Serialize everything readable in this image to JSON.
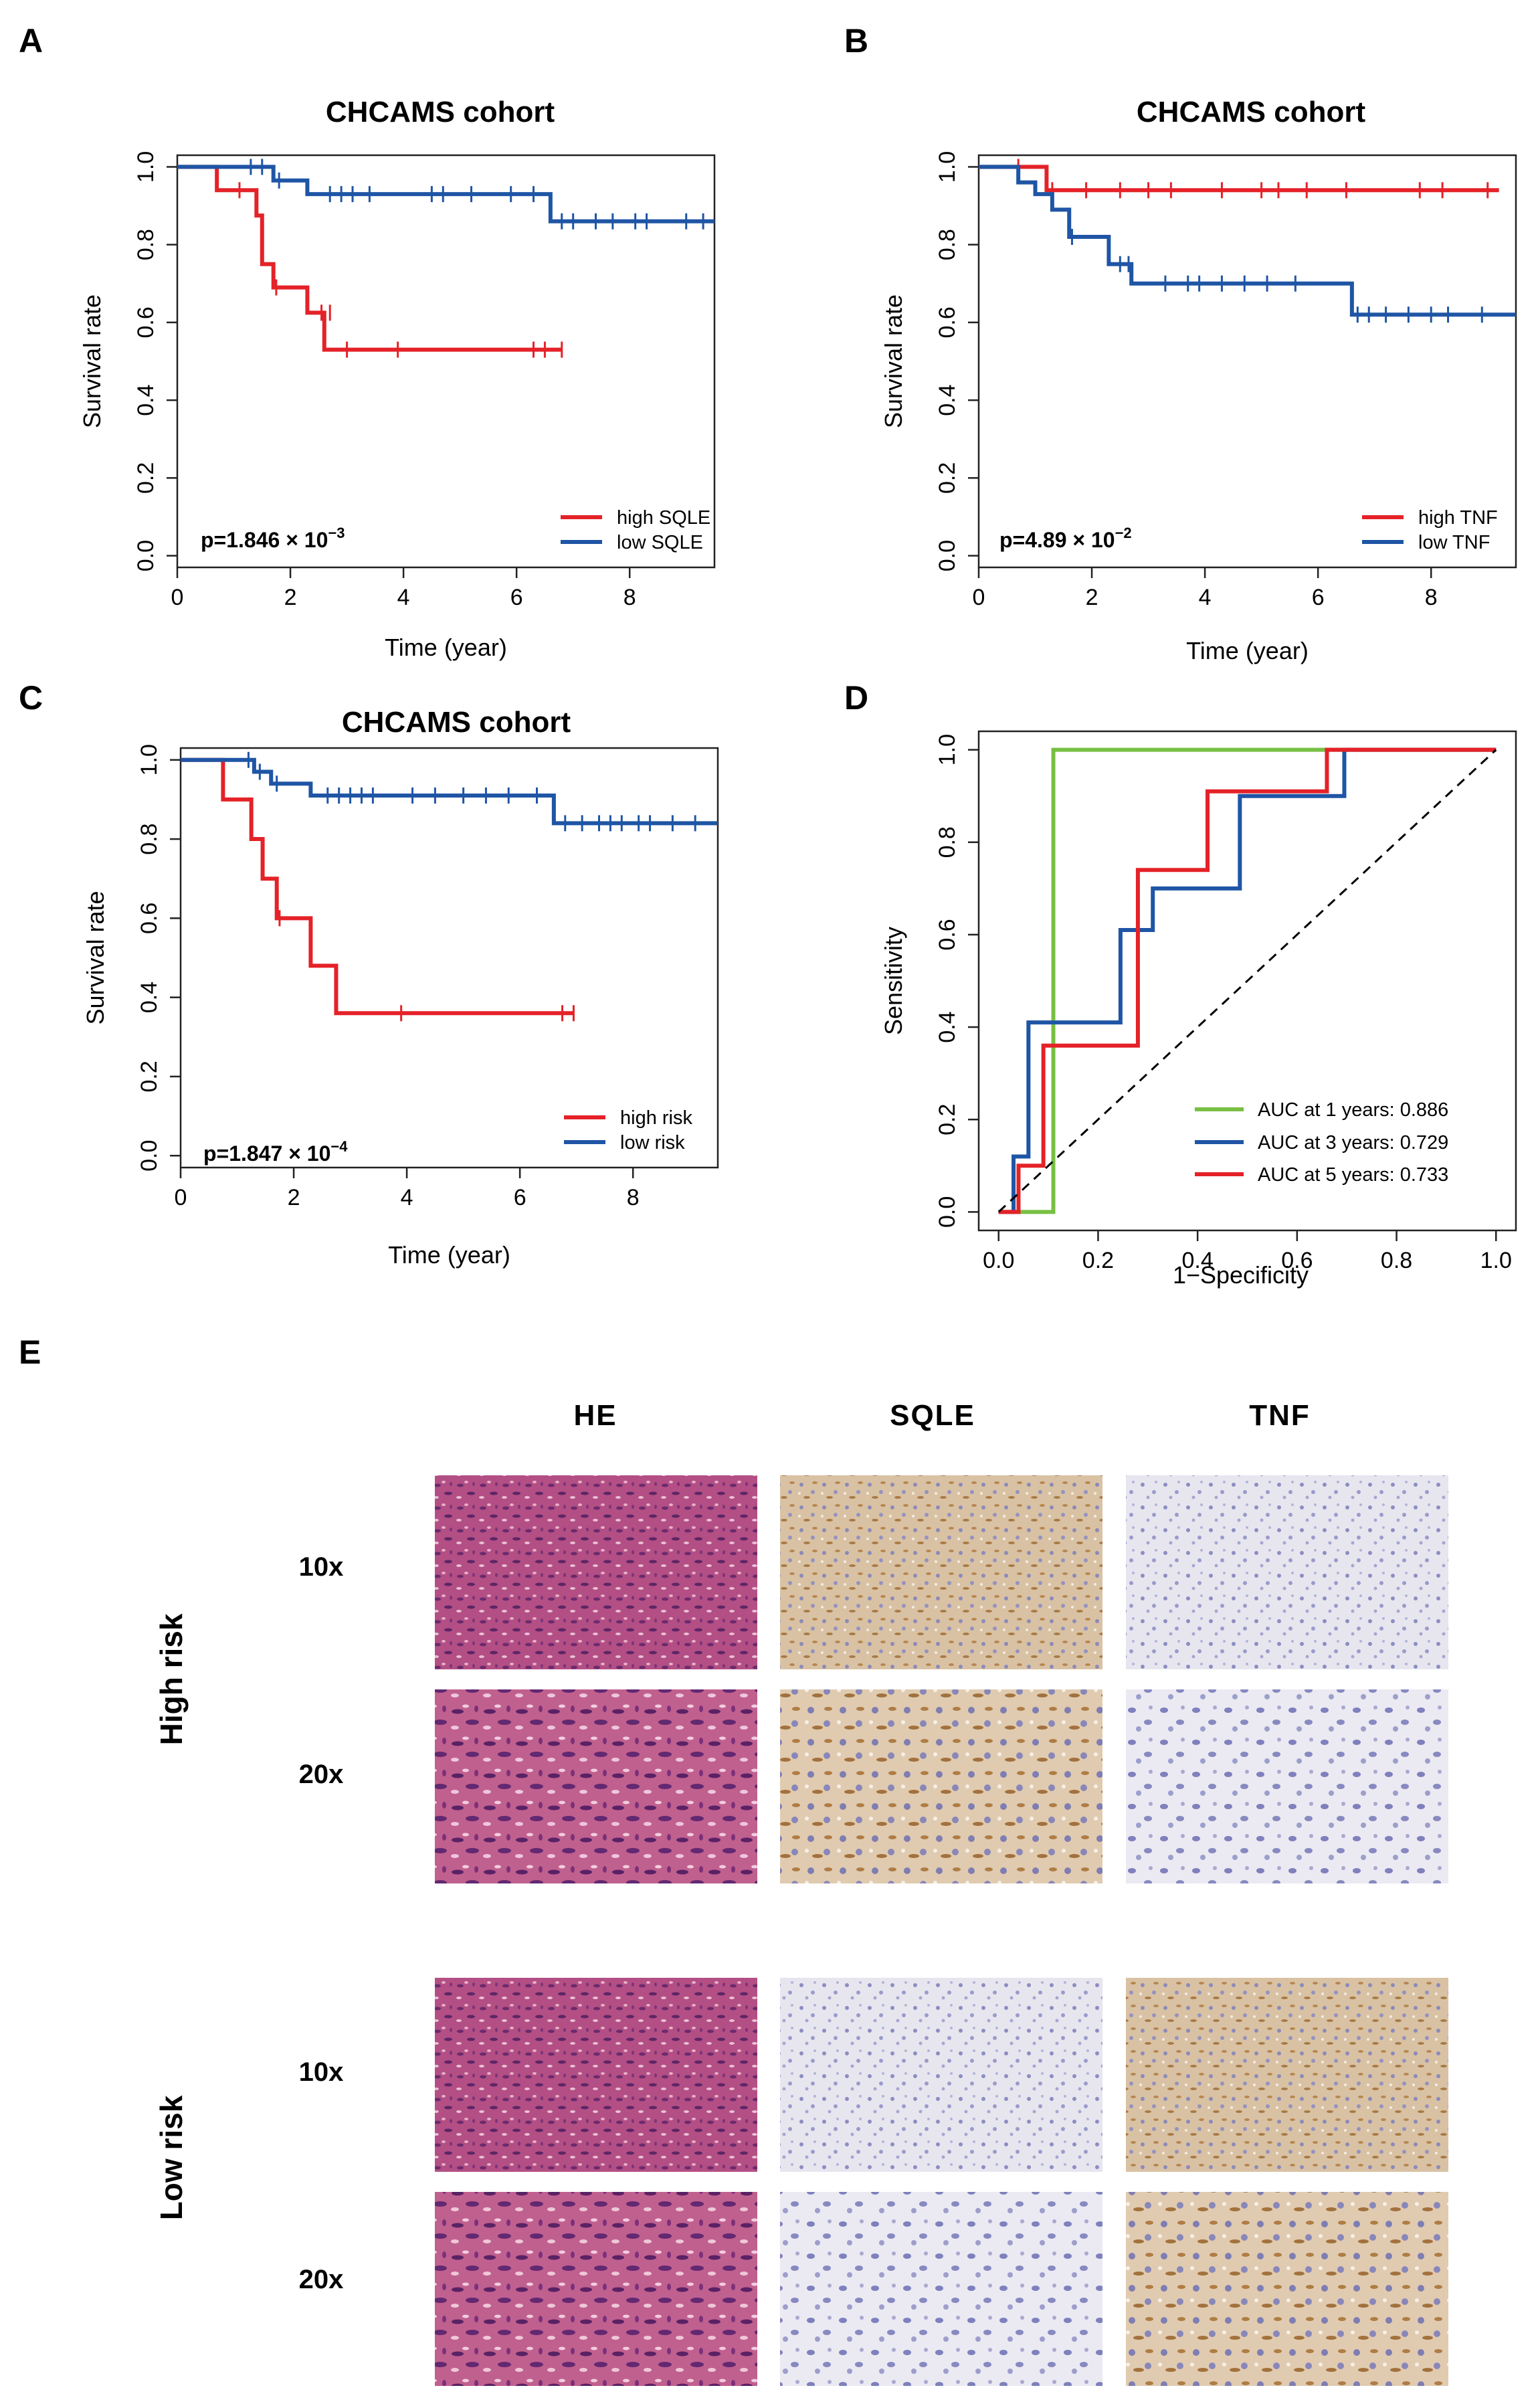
{
  "panels": {
    "A": "A",
    "B": "B",
    "C": "C",
    "D": "D",
    "E": "E"
  },
  "colors": {
    "red": "#E42228",
    "blue": "#1F55A5",
    "green": "#78C043",
    "black": "#000000"
  },
  "pvalues": {
    "A": {
      "base": "p=1.846 × 10",
      "exp": "−3"
    },
    "B": {
      "base": "p=4.89 × 10",
      "exp": "−2"
    },
    "C": {
      "base": "p=1.847 × 10",
      "exp": "−4"
    }
  },
  "chart_data": [
    {
      "id": "A",
      "type": "line",
      "title": "CHCAMS cohort",
      "xlabel": "Time (year)",
      "ylabel": "Survival rate",
      "xlim": [
        0,
        9.5
      ],
      "ylim": [
        0,
        1
      ],
      "xticks": [
        0,
        2,
        4,
        6,
        8
      ],
      "yticks": [
        0.0,
        0.2,
        0.4,
        0.6,
        0.8,
        1.0
      ],
      "xtick_labels": [
        "0",
        "2",
        "4",
        "6",
        "8"
      ],
      "ytick_labels": [
        "0.0",
        "0.2",
        "0.4",
        "0.6",
        "0.8",
        "1.0"
      ],
      "legend": [
        "high SQLE",
        "low SQLE"
      ],
      "legend_position": "bottom-right",
      "series": [
        {
          "name": "high SQLE",
          "color": "#E42228",
          "x": [
            0,
            0.7,
            1.2,
            1.4,
            1.5,
            1.7,
            2.3,
            2.6,
            2.8,
            6.8
          ],
          "y": [
            1.0,
            0.94,
            0.94,
            0.875,
            0.75,
            0.69,
            0.625,
            0.53,
            0.53,
            0.53
          ],
          "censor": [
            [
              1.1,
              0.94
            ],
            [
              1.75,
              0.69
            ],
            [
              2.55,
              0.625
            ],
            [
              2.7,
              0.625
            ],
            [
              3.0,
              0.53
            ],
            [
              3.9,
              0.53
            ],
            [
              6.3,
              0.53
            ],
            [
              6.5,
              0.53
            ],
            [
              6.8,
              0.53
            ]
          ]
        },
        {
          "name": "low SQLE",
          "color": "#1F55A5",
          "x": [
            0,
            1.7,
            2.3,
            6.6,
            9.5
          ],
          "y": [
            1.0,
            0.965,
            0.93,
            0.86,
            0.86
          ],
          "censor": [
            [
              1.3,
              1.0
            ],
            [
              1.5,
              1.0
            ],
            [
              1.8,
              0.965
            ],
            [
              2.7,
              0.93
            ],
            [
              2.9,
              0.93
            ],
            [
              3.1,
              0.93
            ],
            [
              3.4,
              0.93
            ],
            [
              4.5,
              0.93
            ],
            [
              4.7,
              0.93
            ],
            [
              5.2,
              0.93
            ],
            [
              5.9,
              0.93
            ],
            [
              6.3,
              0.93
            ],
            [
              6.8,
              0.86
            ],
            [
              7.0,
              0.86
            ],
            [
              7.4,
              0.86
            ],
            [
              7.7,
              0.86
            ],
            [
              8.1,
              0.86
            ],
            [
              8.3,
              0.86
            ],
            [
              9.0,
              0.86
            ],
            [
              9.3,
              0.86
            ]
          ]
        }
      ]
    },
    {
      "id": "B",
      "type": "line",
      "title": "CHCAMS cohort",
      "xlabel": "Time (year)",
      "ylabel": "Survival rate",
      "xlim": [
        0,
        9.5
      ],
      "ylim": [
        0,
        1
      ],
      "xticks": [
        0,
        2,
        4,
        6,
        8
      ],
      "yticks": [
        0.0,
        0.2,
        0.4,
        0.6,
        0.8,
        1.0
      ],
      "xtick_labels": [
        "0",
        "2",
        "4",
        "6",
        "8"
      ],
      "ytick_labels": [
        "0.0",
        "0.2",
        "0.4",
        "0.6",
        "0.8",
        "1.0"
      ],
      "legend": [
        "high TNF",
        "low TNF"
      ],
      "legend_position": "bottom-right",
      "series": [
        {
          "name": "high TNF",
          "color": "#E42228",
          "x": [
            0,
            1.2,
            9.2
          ],
          "y": [
            1.0,
            0.94,
            0.94
          ],
          "censor": [
            [
              0.7,
              1.0
            ],
            [
              1.3,
              0.94
            ],
            [
              1.9,
              0.94
            ],
            [
              2.5,
              0.94
            ],
            [
              3.0,
              0.94
            ],
            [
              3.4,
              0.94
            ],
            [
              4.3,
              0.94
            ],
            [
              5.0,
              0.94
            ],
            [
              5.3,
              0.94
            ],
            [
              5.8,
              0.94
            ],
            [
              6.5,
              0.94
            ],
            [
              7.8,
              0.94
            ],
            [
              8.2,
              0.94
            ],
            [
              9.0,
              0.94
            ]
          ]
        },
        {
          "name": "low TNF",
          "color": "#1F55A5",
          "x": [
            0,
            0.7,
            1.0,
            1.3,
            1.6,
            2.3,
            2.7,
            6.6,
            9.5
          ],
          "y": [
            1.0,
            0.96,
            0.93,
            0.89,
            0.82,
            0.75,
            0.7,
            0.62,
            0.62
          ],
          "censor": [
            [
              1.65,
              0.82
            ],
            [
              2.5,
              0.75
            ],
            [
              2.65,
              0.75
            ],
            [
              3.3,
              0.7
            ],
            [
              3.7,
              0.7
            ],
            [
              3.9,
              0.7
            ],
            [
              4.3,
              0.7
            ],
            [
              4.7,
              0.7
            ],
            [
              5.1,
              0.7
            ],
            [
              5.6,
              0.7
            ],
            [
              6.7,
              0.62
            ],
            [
              6.9,
              0.62
            ],
            [
              7.2,
              0.62
            ],
            [
              7.6,
              0.62
            ],
            [
              8.0,
              0.62
            ],
            [
              8.3,
              0.62
            ],
            [
              8.9,
              0.62
            ]
          ]
        }
      ]
    },
    {
      "id": "C",
      "type": "line",
      "title": "CHCAMS cohort",
      "xlabel": "Time (year)",
      "ylabel": "Survival rate",
      "xlim": [
        0,
        9.5
      ],
      "ylim": [
        0,
        1
      ],
      "xticks": [
        0,
        2,
        4,
        6,
        8
      ],
      "yticks": [
        0.0,
        0.2,
        0.4,
        0.6,
        0.8,
        1.0
      ],
      "xtick_labels": [
        "0",
        "2",
        "4",
        "6",
        "8"
      ],
      "ytick_labels": [
        "0.0",
        "0.2",
        "0.4",
        "0.6",
        "0.8",
        "1.0"
      ],
      "legend": [
        "high risk",
        "low risk"
      ],
      "legend_position": "bottom-right",
      "series": [
        {
          "name": "high risk",
          "color": "#E42228",
          "x": [
            0,
            0.75,
            1.25,
            1.45,
            1.7,
            2.3,
            2.75,
            6.95
          ],
          "y": [
            1.0,
            0.9,
            0.8,
            0.7,
            0.6,
            0.48,
            0.36,
            0.36
          ],
          "censor": [
            [
              1.75,
              0.6
            ],
            [
              3.9,
              0.36
            ],
            [
              6.75,
              0.36
            ],
            [
              6.95,
              0.36
            ]
          ]
        },
        {
          "name": "low risk",
          "color": "#1F55A5",
          "x": [
            0,
            1.3,
            1.6,
            2.3,
            6.6,
            9.5
          ],
          "y": [
            1.0,
            0.97,
            0.94,
            0.91,
            0.84,
            0.84
          ],
          "censor": [
            [
              1.2,
              1.0
            ],
            [
              1.4,
              0.97
            ],
            [
              1.7,
              0.94
            ],
            [
              2.6,
              0.91
            ],
            [
              2.8,
              0.91
            ],
            [
              3.0,
              0.91
            ],
            [
              3.2,
              0.91
            ],
            [
              3.4,
              0.91
            ],
            [
              4.1,
              0.91
            ],
            [
              4.5,
              0.91
            ],
            [
              5.0,
              0.91
            ],
            [
              5.4,
              0.91
            ],
            [
              5.8,
              0.91
            ],
            [
              6.3,
              0.91
            ],
            [
              6.8,
              0.84
            ],
            [
              7.1,
              0.84
            ],
            [
              7.4,
              0.84
            ],
            [
              7.6,
              0.84
            ],
            [
              7.8,
              0.84
            ],
            [
              8.1,
              0.84
            ],
            [
              8.3,
              0.84
            ],
            [
              8.7,
              0.84
            ],
            [
              9.1,
              0.84
            ]
          ]
        }
      ]
    },
    {
      "id": "D",
      "type": "line",
      "xlabel": "1−Specificity",
      "ylabel": "Sensitivity",
      "xlim": [
        0,
        1
      ],
      "ylim": [
        0,
        1
      ],
      "xticks": [
        0,
        0.2,
        0.4,
        0.6,
        0.8,
        1.0
      ],
      "yticks": [
        0,
        0.2,
        0.4,
        0.6,
        0.8,
        1.0
      ],
      "xtick_labels": [
        "0.0",
        "0.2",
        "0.4",
        "0.6",
        "0.8",
        "1.0"
      ],
      "ytick_labels": [
        "0.0",
        "0.2",
        "0.4",
        "0.6",
        "0.8",
        "1.0"
      ],
      "legend": [
        "AUC at 1 years: 0.886",
        "AUC at 3 years: 0.729",
        "AUC at 5 years: 0.733"
      ],
      "legend_position": "bottom-right",
      "series": [
        {
          "name": "AUC at 1 years: 0.886",
          "color": "#78C043",
          "x": [
            0,
            0.11,
            0.11,
            0.66,
            1.0
          ],
          "y": [
            0,
            0,
            1.0,
            1.0,
            1.0
          ]
        },
        {
          "name": "AUC at 3 years: 0.729",
          "color": "#1F55A5",
          "x": [
            0,
            0.03,
            0.03,
            0.06,
            0.06,
            0.245,
            0.245,
            0.31,
            0.31,
            0.485,
            0.485,
            0.695,
            0.695,
            1.0
          ],
          "y": [
            0,
            0,
            0.12,
            0.12,
            0.41,
            0.41,
            0.61,
            0.61,
            0.7,
            0.7,
            0.9,
            0.9,
            1.0,
            1.0
          ]
        },
        {
          "name": "AUC at 5 years: 0.733",
          "color": "#E42228",
          "x": [
            0,
            0.04,
            0.04,
            0.09,
            0.09,
            0.28,
            0.28,
            0.42,
            0.42,
            0.66,
            0.66,
            1.0
          ],
          "y": [
            0,
            0,
            0.1,
            0.1,
            0.36,
            0.36,
            0.74,
            0.74,
            0.91,
            0.91,
            1.0,
            1.0
          ]
        },
        {
          "name": "reference",
          "color": "#000000",
          "dashed": true,
          "x": [
            0,
            1
          ],
          "y": [
            0,
            1
          ]
        }
      ]
    }
  ],
  "histology": {
    "columns": [
      "HE",
      "SQLE",
      "TNF"
    ],
    "groups": [
      {
        "label": "High risk",
        "rows": [
          "10x",
          "20x"
        ]
      },
      {
        "label": "Low risk",
        "rows": [
          "10x",
          "20x"
        ]
      }
    ]
  }
}
